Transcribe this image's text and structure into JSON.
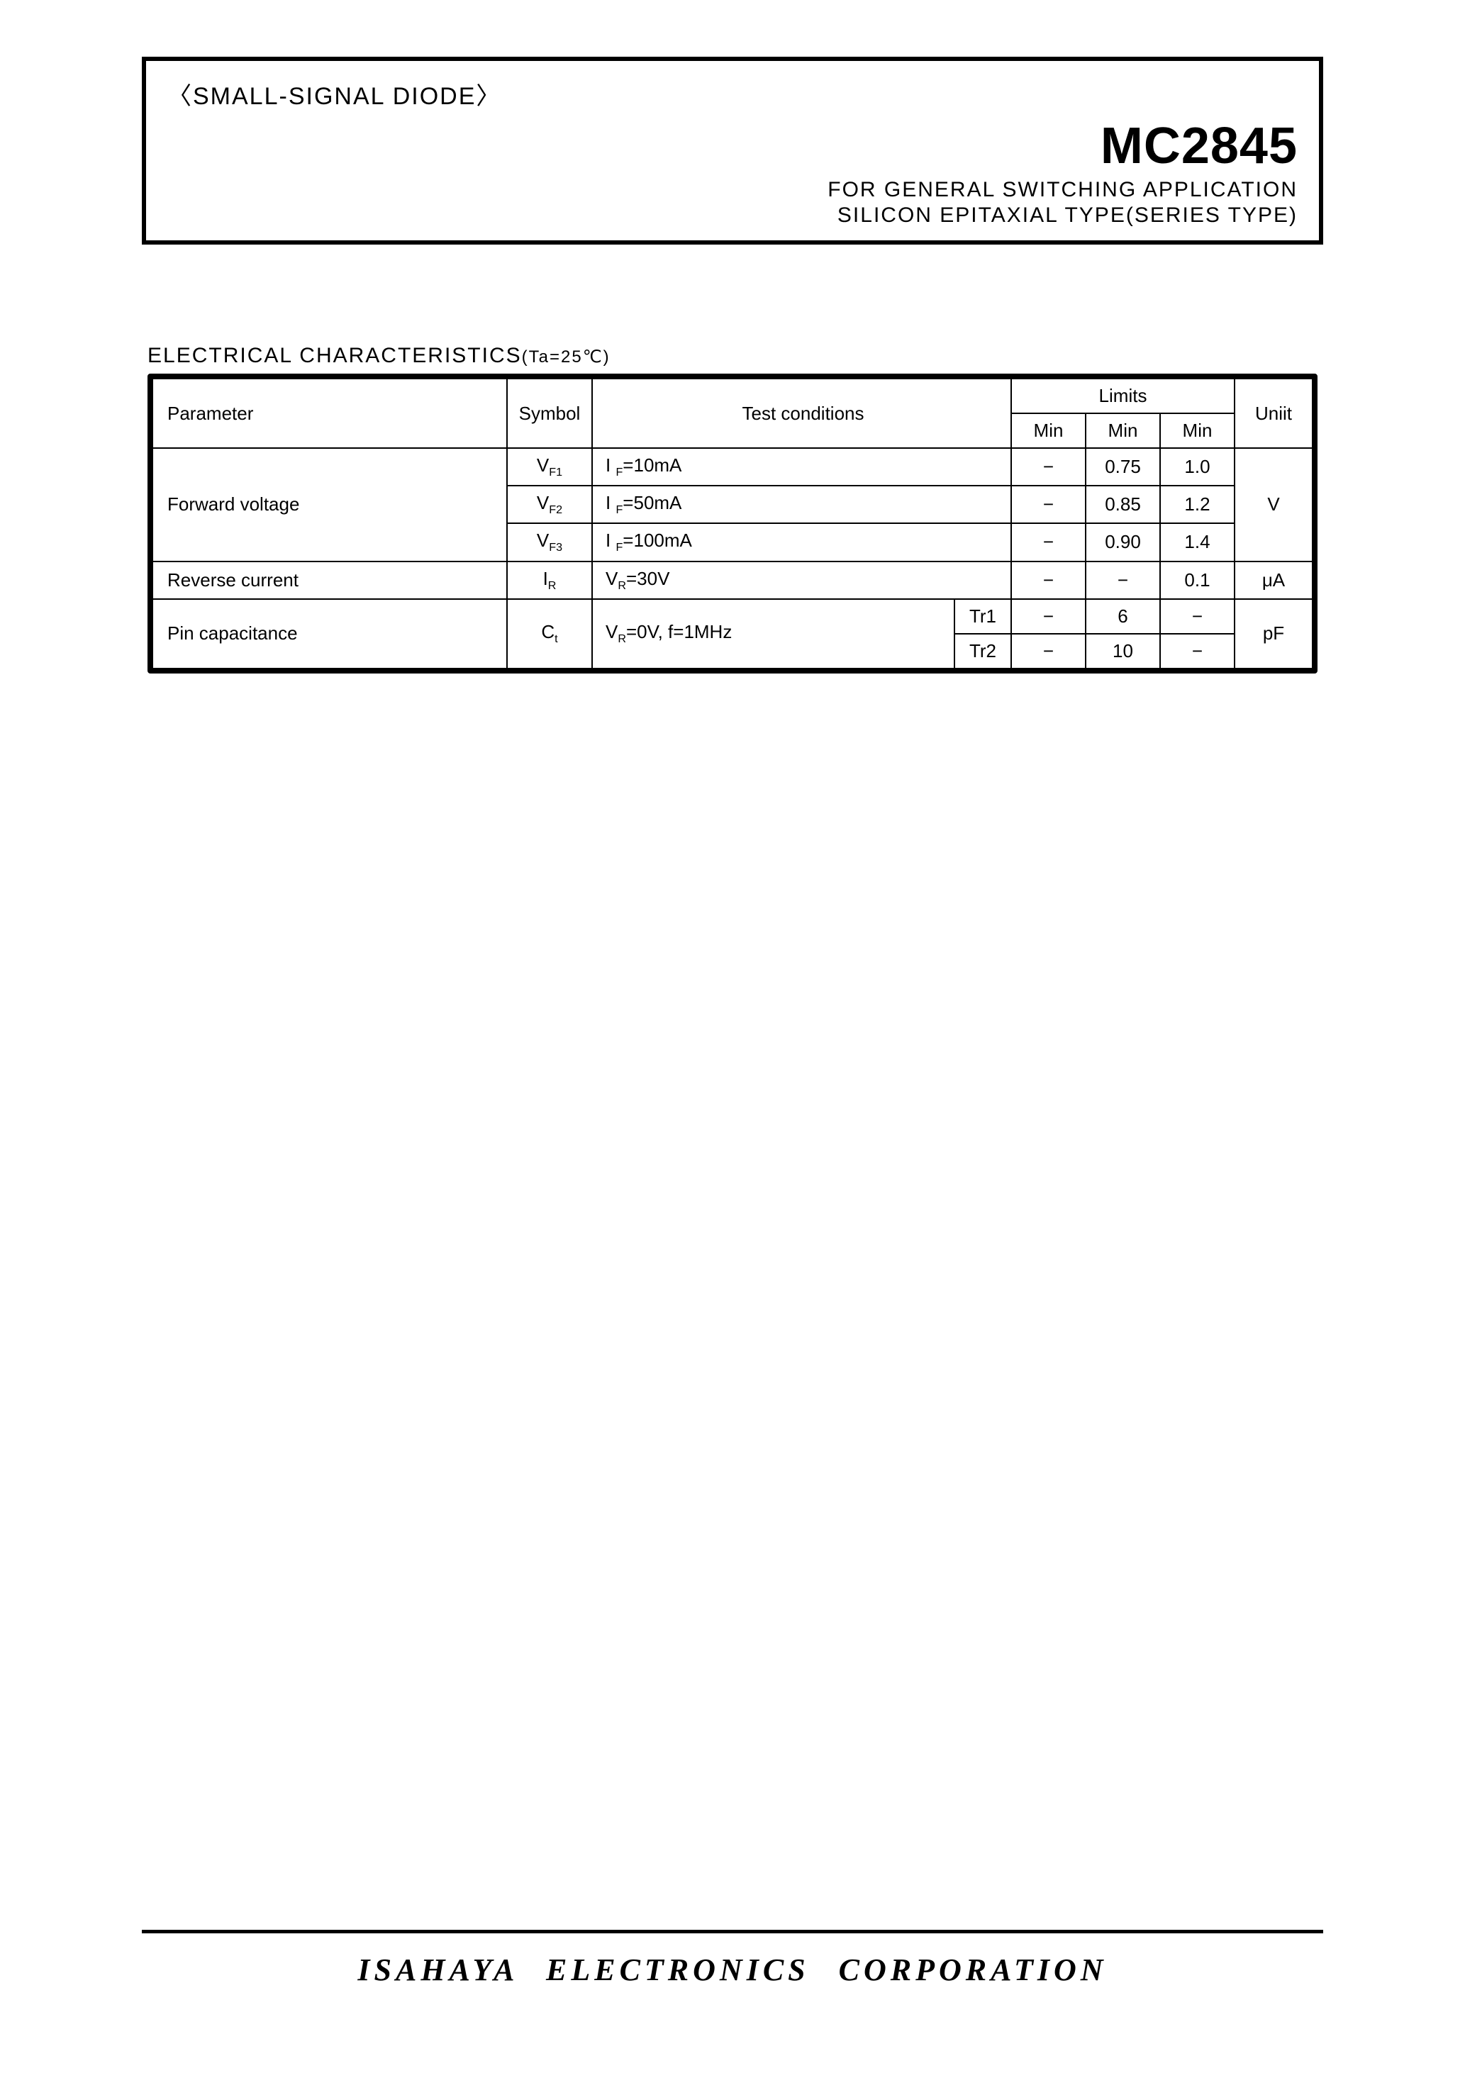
{
  "header": {
    "category": "〈SMALL-SIGNAL DIODE〉",
    "part_number": "MC2845",
    "application": "FOR GENERAL SWITCHING APPLICATION",
    "type": "SILICON EPITAXIAL TYPE(SERIES  TYPE)"
  },
  "section": {
    "title": "ELECTRICAL CHARACTERISTICS",
    "condition": "(Ta=25℃)"
  },
  "table": {
    "head": {
      "parameter": "Parameter",
      "symbol": "Symbol",
      "test_conditions": "Test conditions",
      "limits": "Limits",
      "unit": "Uniit",
      "min1": "Min",
      "min2": "Min",
      "min3": "Min"
    },
    "rows": {
      "fv": {
        "parameter": "Forward voltage",
        "unit": "V",
        "r1": {
          "symbol_html": "V<span class='sub'>F1</span>",
          "cond_html": "I <span class='sub'>F</span>=10mA",
          "min": "−",
          "typ": "0.75",
          "max": "1.0"
        },
        "r2": {
          "symbol_html": "V<span class='sub'>F2</span>",
          "cond_html": "I <span class='sub'>F</span>=50mA",
          "min": "−",
          "typ": "0.85",
          "max": "1.2"
        },
        "r3": {
          "symbol_html": "V<span class='sub'>F3</span>",
          "cond_html": "I <span class='sub'>F</span>=100mA",
          "min": "−",
          "typ": "0.90",
          "max": "1.4"
        }
      },
      "rc": {
        "parameter": "Reverse current",
        "symbol_html": "I<span class='sub'>R</span>",
        "cond_html": "V<span class='sub'>R</span>=30V",
        "min": "−",
        "typ": "−",
        "max": "0.1",
        "unit": "μA"
      },
      "pc": {
        "parameter": "Pin capacitance",
        "symbol_html": "C<span class='sub'>t</span>",
        "cond_html": "V<span class='sub'>R</span>=0V,  f=1MHz",
        "unit": "pF",
        "r1": {
          "sub": "Tr1",
          "min": "−",
          "typ": "6",
          "max": "−"
        },
        "r2": {
          "sub": "Tr2",
          "min": "−",
          "typ": "10",
          "max": "−"
        }
      }
    }
  },
  "footer": {
    "company": "ISAHAYA  ELECTRONICS  CORPORATION"
  },
  "colors": {
    "text": "#000000",
    "background": "#ffffff",
    "border": "#000000"
  }
}
